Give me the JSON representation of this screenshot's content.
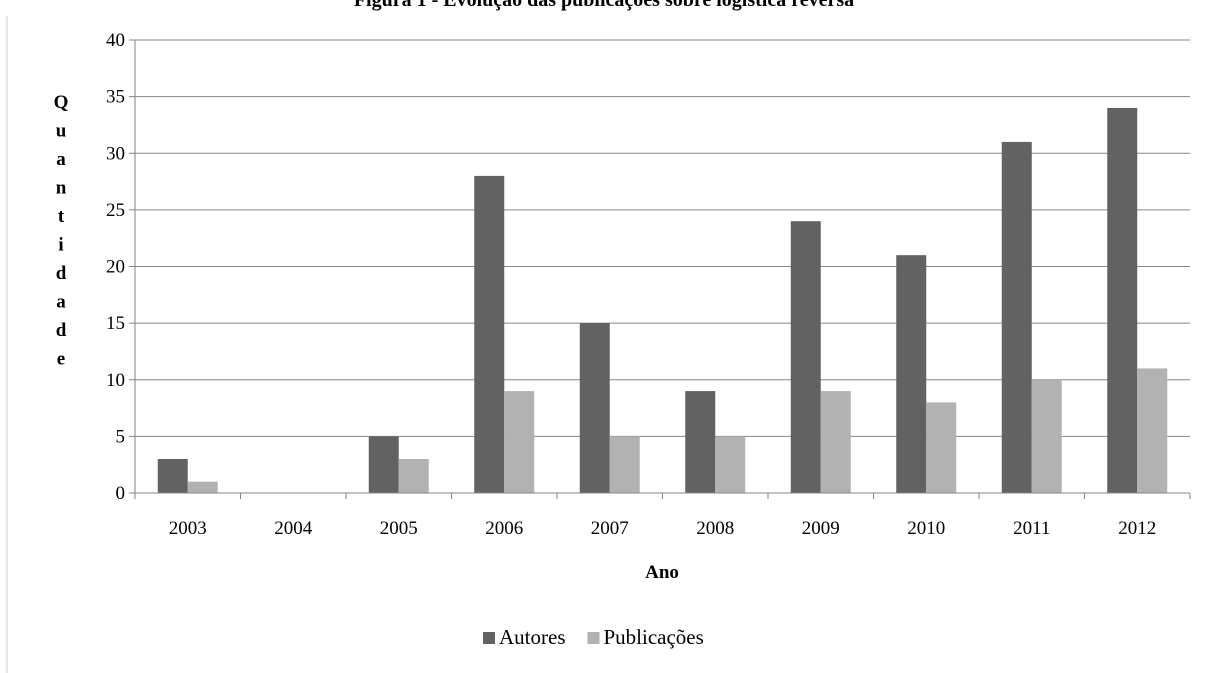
{
  "chart_data": {
    "type": "bar",
    "title": "Figura 1 - Evolução das publicações sobre logística reversa",
    "xlabel": "Ano",
    "ylabel": "Quantidade",
    "categories": [
      "2003",
      "2004",
      "2005",
      "2006",
      "2007",
      "2008",
      "2009",
      "2010",
      "2011",
      "2012"
    ],
    "series": [
      {
        "name": "Autores",
        "values": [
          3,
          0,
          5,
          28,
          15,
          9,
          24,
          21,
          31,
          34
        ],
        "color": "#626262"
      },
      {
        "name": "Publicações",
        "values": [
          1,
          0,
          3,
          9,
          5,
          5,
          9,
          8,
          10,
          11
        ],
        "color": "#b2b2b2"
      }
    ],
    "ylim": [
      0,
      40
    ],
    "yticks": [
      0,
      5,
      10,
      15,
      20,
      25,
      30,
      35,
      40
    ],
    "grid": true,
    "legend_position": "bottom"
  }
}
